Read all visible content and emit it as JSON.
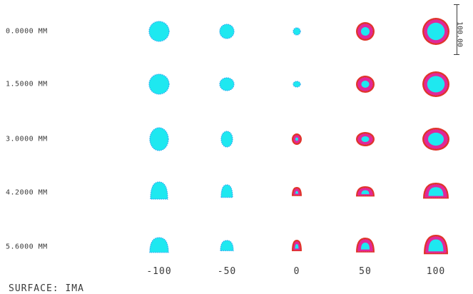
{
  "field_labels": [
    "0.0000 MM",
    "1.5000 MM",
    "3.0000 MM",
    "4.2000 MM",
    "5.6000 MM"
  ],
  "defocus_labels": [
    "-100",
    "-50",
    "0",
    "50",
    "100"
  ],
  "surface_label": "SURFACE: IMA",
  "scale_label": "100.00",
  "colors": {
    "primary": "#1ee8f0",
    "secondary": "#e0289a",
    "tertiary": "#e0352a",
    "text": "#3a3a3a"
  }
}
